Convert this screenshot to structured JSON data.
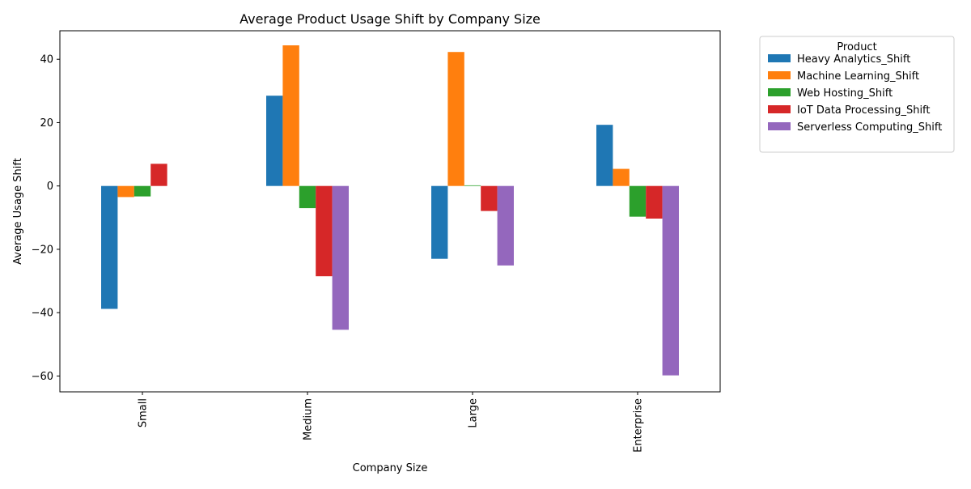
{
  "chart_data": {
    "type": "bar",
    "title": "Average Product Usage Shift by Company Size",
    "xlabel": "Company Size",
    "ylabel": "Average Usage Shift",
    "categories": [
      "Small",
      "Medium",
      "Large",
      "Enterprise"
    ],
    "ylim": [
      -65,
      49
    ],
    "yticks": [
      -60,
      -40,
      -20,
      0,
      20,
      40
    ],
    "ytick_labels": [
      "−60",
      "−40",
      "−20",
      "0",
      "20",
      "40"
    ],
    "grid": false,
    "legend": {
      "title": "Product",
      "placement": "outside-top-right"
    },
    "series": [
      {
        "name": "Heavy Analytics_Shift",
        "color": "#1f77b4",
        "values": [
          -38.8,
          28.5,
          -23.0,
          19.3
        ]
      },
      {
        "name": "Machine Learning_Shift",
        "color": "#ff7f0e",
        "values": [
          -3.5,
          44.4,
          42.3,
          5.4
        ]
      },
      {
        "name": "Web Hosting_Shift",
        "color": "#2ca02c",
        "values": [
          -3.3,
          -7.0,
          0.2,
          -9.7
        ]
      },
      {
        "name": "IoT Data Processing_Shift",
        "color": "#d62728",
        "values": [
          7.0,
          -28.5,
          -7.9,
          -10.3
        ]
      },
      {
        "name": "Serverless Computing_Shift",
        "color": "#9467bd",
        "values": [
          0.0,
          -45.4,
          -25.1,
          -59.8
        ]
      }
    ]
  }
}
